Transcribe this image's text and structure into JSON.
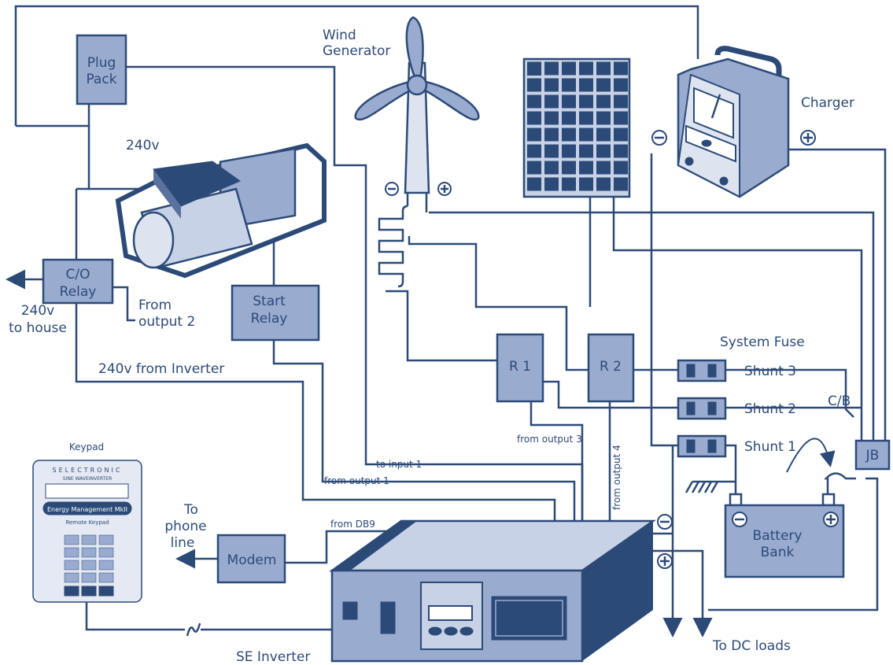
{
  "components": {
    "plug_pack": {
      "label": [
        "Plug",
        "Pack"
      ]
    },
    "wind_generator": {
      "label": [
        "Wind",
        "Generator"
      ]
    },
    "generator": {
      "label": "240v"
    },
    "charger": {
      "label": "Charger"
    },
    "co_relay": {
      "label": [
        "C/O",
        "Relay"
      ]
    },
    "start_relay": {
      "label": [
        "Start",
        "Relay"
      ]
    },
    "r1": {
      "label": "R 1"
    },
    "r2": {
      "label": "R 2"
    },
    "shunts": [
      {
        "label": "Shunt 3"
      },
      {
        "label": "Shunt 2"
      },
      {
        "label": "Shunt 1"
      }
    ],
    "system_fuse": {
      "label": "System Fuse"
    },
    "circuit_breaker": {
      "label": "C/B"
    },
    "junction_box": {
      "label": "JB"
    },
    "battery_bank": {
      "label": [
        "Battery",
        "Bank"
      ]
    },
    "modem": {
      "label": "Modem"
    },
    "inverter": {
      "label": "SE Inverter"
    },
    "keypad": {
      "label": "Keypad",
      "brand": "SELECTRONIC",
      "model": "SINE WAVEINVERTER",
      "display_title": "Energy Management MkII",
      "subtitle": "Remote Keypad"
    }
  },
  "connections": {
    "house": [
      "240v",
      "to house"
    ],
    "from_output_2": [
      "From",
      "output 2"
    ],
    "inverter_240v": "240v from Inverter",
    "to_input_1": "to input 1",
    "from_output_1": "from output 1",
    "from_output_3": "from output 3",
    "from_output_4": "from output 4",
    "from_db9": "from DB9",
    "phone_line": [
      "To",
      "phone",
      "line"
    ],
    "dc_loads": "To DC loads"
  }
}
